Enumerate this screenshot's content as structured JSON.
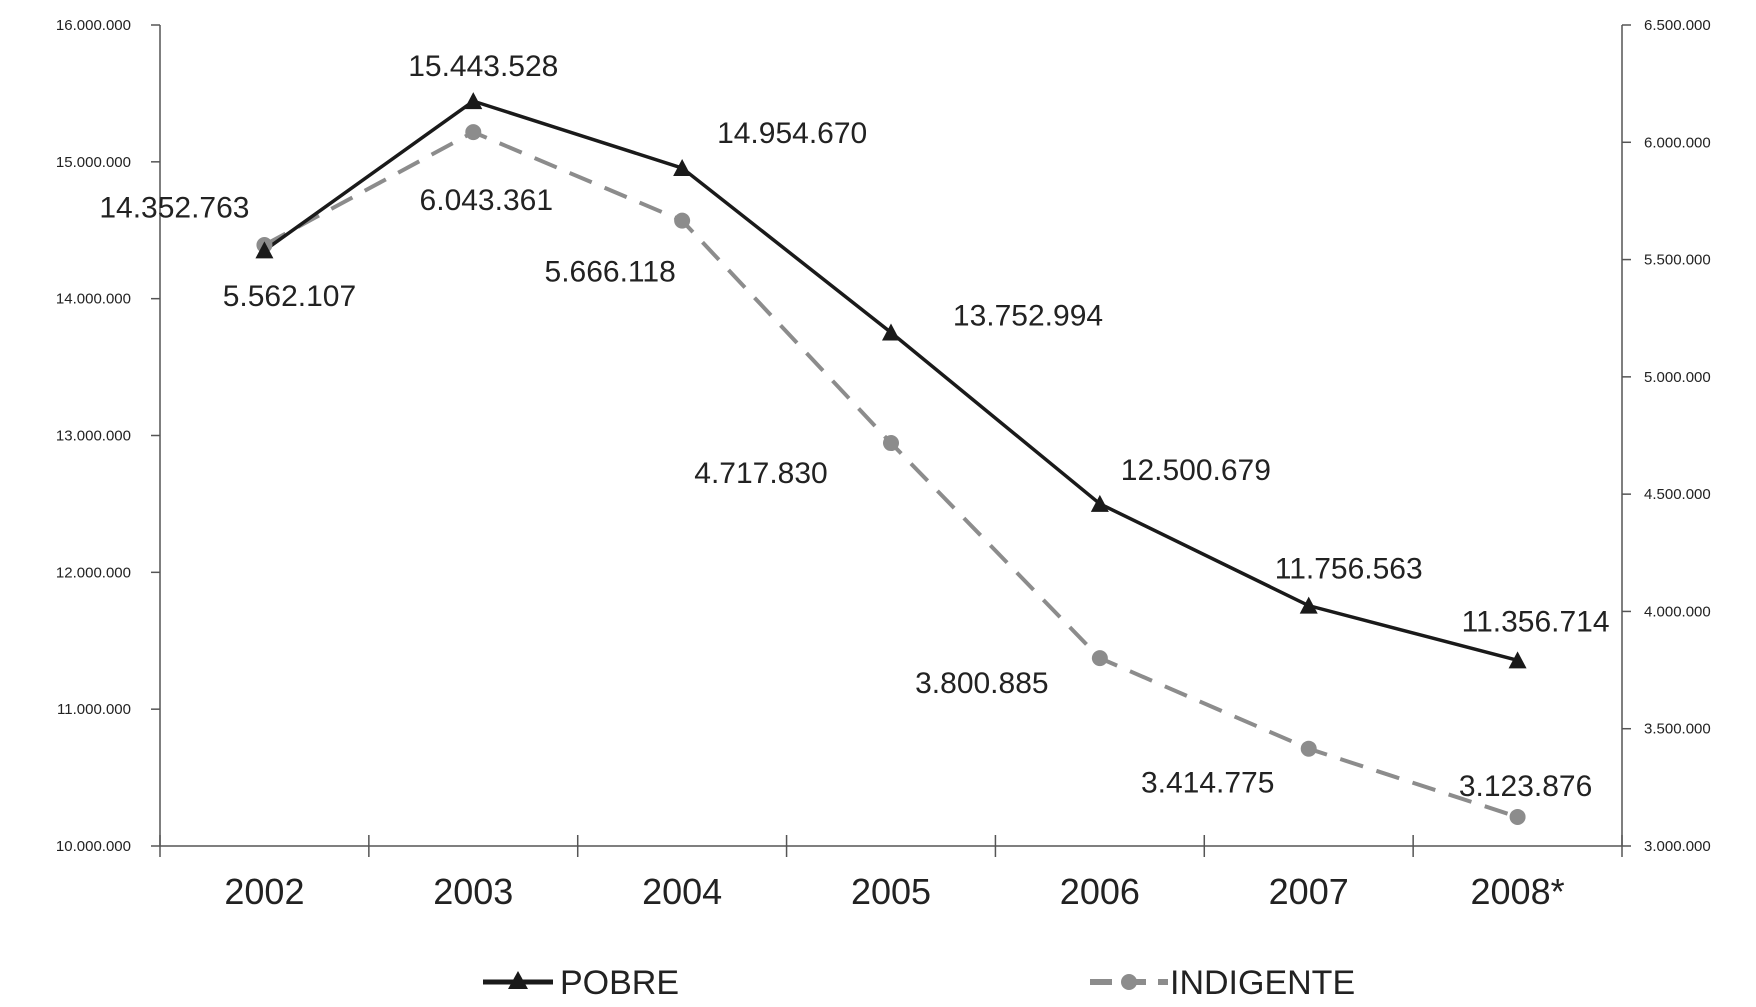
{
  "chart_data": {
    "type": "line",
    "categories": [
      "2002",
      "2003",
      "2004",
      "2005",
      "2006",
      "2007",
      "2008*"
    ],
    "series": [
      {
        "name": "POBRE",
        "axis": "left",
        "color": "#1a1a1a",
        "line_style": "solid",
        "marker": "triangle",
        "values": [
          14352763,
          15443528,
          14954670,
          13752994,
          12500679,
          11756563,
          11356714
        ],
        "labels": [
          "14.352.763",
          "15.443.528",
          "14.954.670",
          "13.752.994",
          "12.500.679",
          "11.756.563",
          "11.356.714"
        ]
      },
      {
        "name": "INDIGENTE",
        "axis": "right",
        "color": "#8c8c8c",
        "line_style": "dashed",
        "marker": "circle",
        "values": [
          5562107,
          6043361,
          5666118,
          4717830,
          3800885,
          3414775,
          3123876
        ],
        "labels": [
          "5.562.107",
          "6.043.361",
          "5.666.118",
          "4.717.830",
          "3.800.885",
          "3.414.775",
          "3.123.876"
        ]
      }
    ],
    "y_left": {
      "ylim": [
        10000000,
        16000000
      ],
      "ticks": [
        10000000,
        11000000,
        12000000,
        13000000,
        14000000,
        15000000,
        16000000
      ],
      "tick_labels": [
        "10.000.000",
        "11.000.000",
        "12.000.000",
        "13.000.000",
        "14.000.000",
        "15.000.000",
        "16.000.000"
      ]
    },
    "y_right": {
      "ylim": [
        3000000,
        6500000
      ],
      "ticks": [
        3000000,
        3500000,
        4000000,
        4500000,
        5000000,
        5500000,
        6000000,
        6500000
      ],
      "tick_labels": [
        "3.000.000",
        "3.500.000",
        "4.000.000",
        "4.500.000",
        "5.000.000",
        "5.500.000",
        "6.000.000",
        "6.500.000"
      ]
    },
    "grid": false,
    "legend_position": "bottom"
  }
}
